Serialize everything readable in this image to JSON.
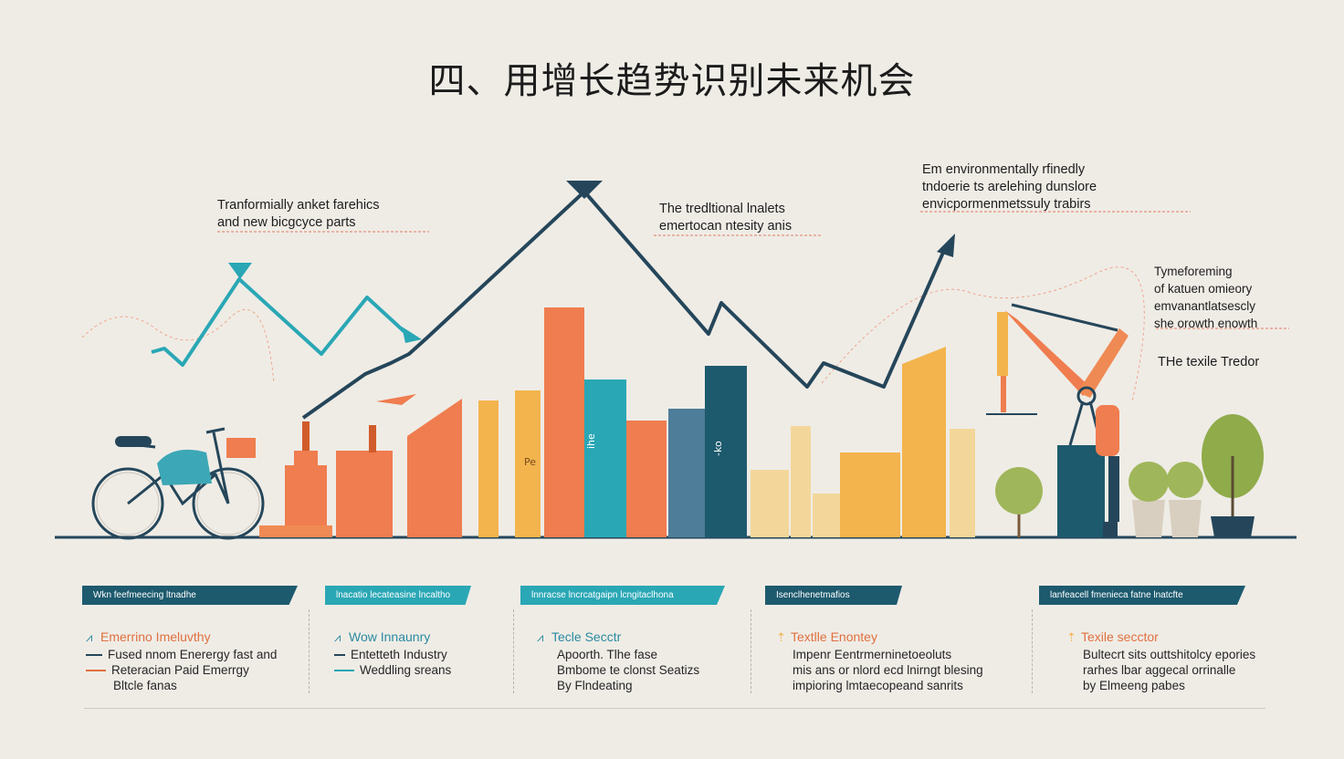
{
  "title": "四、用增长趋势识别未来机会",
  "annotations": {
    "left": [
      "Tranformially anket farehics",
      "and new bicgcyce parts"
    ],
    "center": [
      "The tredltional lnalets",
      "emertocan ntesity anis"
    ],
    "top_right": [
      "Em environmentally rfinedly",
      "tndoerie ts arelehing dunslore",
      "envicpormenmetssuly trabirs"
    ],
    "right": [
      "Tymeforeming",
      "of katuen omieory",
      "emvanantlatsescly",
      "she orowth enowth"
    ],
    "right_bottom": "THe texile Tredor"
  },
  "bar_labels": [
    "Pe",
    "ihe",
    "-ko"
  ],
  "panels": [
    {
      "band": "Wkn feefmeecing ltnadhe",
      "color": "#1d5a6e",
      "head": "Emerrino Imeluvthy",
      "head_color": "#e0703f",
      "lines": [
        "Fused nnom Enerergy fast and",
        "Reteracian Paid Emerrgy",
        "Bltcle fanas"
      ]
    },
    {
      "band": "lnacatio lecateasine lncaltho",
      "color": "#2aa7b5",
      "head": "Wow Innaunry",
      "head_color": "#2a8aa0",
      "lines": [
        "Entetteth Industry",
        "Weddling sreans"
      ]
    },
    {
      "band": "lnnracse lncrcatgaipn lcngitaclhona",
      "color": "#2aa7b5",
      "head": "Tecle Secctr",
      "head_color": "#2a8aa0",
      "lines": [
        "Apoorth. Tlhe fase",
        "Bmbome te clonst Seatizs",
        "By Flndeating"
      ]
    },
    {
      "band": "Isenclhenetmafios",
      "color": "#1d5a6e",
      "head": "Textlle Enontey",
      "head_color": "#e0703f",
      "lines": [
        "Impenr Eentrmerninetoeoluts",
        "mis ans or nlord ecd lnirngt blesing",
        "impioring lmtaecopeand sanrits"
      ]
    },
    {
      "band": "lanfeacell fmenieca fatne lnatcfte",
      "color": "#1d5a6e",
      "head": "Texile secctor",
      "head_color": "#e0703f",
      "lines": [
        "Bultecrt sits outtshitolcy epories",
        "rarhes lbar aggecal orrinalle",
        "by Elmeeng pabes"
      ]
    }
  ],
  "colors": {
    "teal": "#2aa7b5",
    "dark_teal": "#1d5a6e",
    "orange": "#ef7d4f",
    "yellow": "#f3b44d",
    "pale_yellow": "#f3d79a",
    "navy": "#25465a",
    "green": "#8fab4a"
  }
}
